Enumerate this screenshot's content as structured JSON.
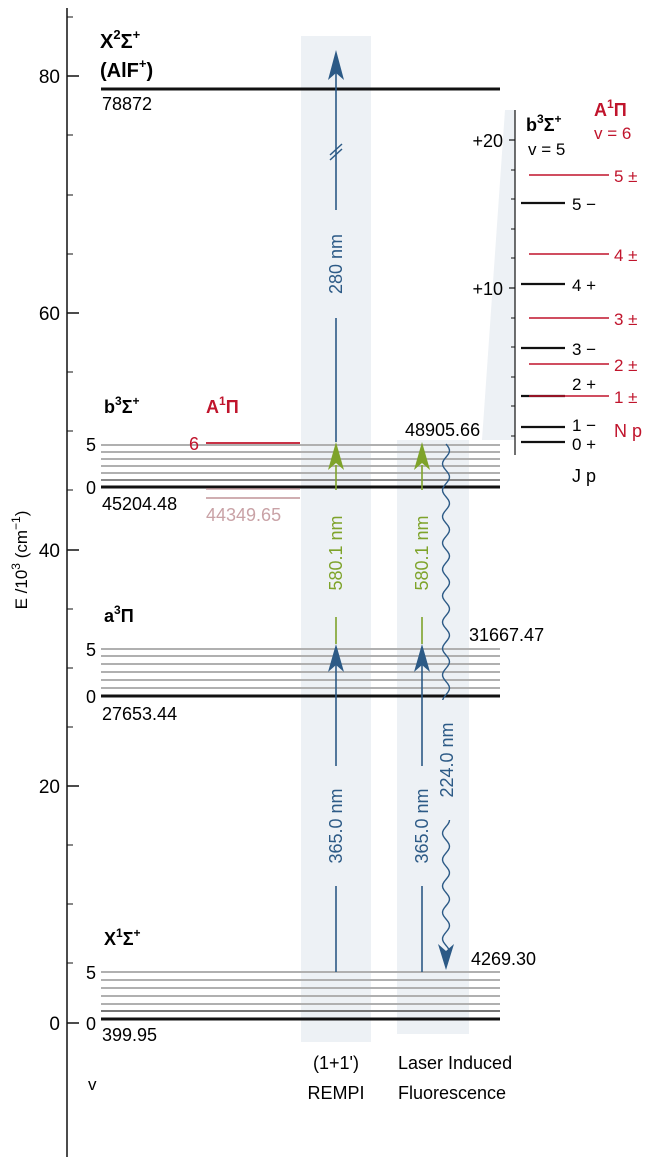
{
  "axis": {
    "label_base": "E /10",
    "label_exp": "3",
    "label_unit": " (cm",
    "label_unit_exp": "−1",
    "label_close": ")",
    "ticks": [
      "80",
      "60",
      "40",
      "20",
      "0"
    ],
    "v_label": "v"
  },
  "states": {
    "ion": {
      "main": "X",
      "sup": "2",
      "sym": "Σ",
      "sym_sup": "+",
      "sub": "(AlF",
      "sub_sup": "+",
      "sub_close": ")",
      "energy": "78872"
    },
    "b": {
      "main": "b",
      "sup": "3",
      "sym": "Σ",
      "sym_sup": "+",
      "v_top": "5",
      "v_bottom": "0",
      "energy": "45204.48"
    },
    "A": {
      "main": "A",
      "sup": "1",
      "sym": "Π",
      "v": "6",
      "energy": "44349.65"
    },
    "a": {
      "main": "a",
      "sup": "3",
      "sym": "Π",
      "v_top": "5",
      "v_bottom": "0",
      "energy_low": "27653.44",
      "energy_high": "31667.47"
    },
    "X": {
      "main": "X",
      "sup": "1",
      "sym": "Σ",
      "sym_sup": "+",
      "v_top": "5",
      "v_bottom": "0",
      "energy_low": "399.95",
      "energy_high": "4269.30"
    },
    "b_top_energy": "48905.66"
  },
  "transitions": {
    "rempi_uv": "280 nm",
    "rempi_vis": "580.1 nm",
    "rempi_365": "365.0 nm",
    "lif_vis": "580.1 nm",
    "lif_365": "365.0 nm",
    "lif_emit": "224.0 nm"
  },
  "columns": {
    "rempi_line1": "(1+1')",
    "rempi_line2": "REMPI",
    "lif_line1": "Laser Induced",
    "lif_line2": "Fluorescence"
  },
  "inset": {
    "b_main": "b",
    "b_sup": "3",
    "b_sym": "Σ",
    "b_sym_sup": "+",
    "b_v": "v = 5",
    "A_main": "A",
    "A_sup": "1",
    "A_sym": "Π",
    "A_v": "v = 6",
    "ticks": [
      "+20",
      "+10"
    ],
    "black_levels": [
      "5 −",
      "4 +",
      "3 −",
      "2 +",
      "1 −",
      "0 +"
    ],
    "red_levels": [
      "5 ±",
      "4 ±",
      "3 ±",
      "2 ±",
      "1 ±"
    ],
    "red_header": "N p",
    "black_header": "J p"
  },
  "colors": {
    "blue": "#2c5a86",
    "green": "#7ea32a",
    "red": "#c0142c",
    "pink": "#c9a2a6",
    "band": "#edf1f5",
    "gray": "#a8a8a8"
  }
}
